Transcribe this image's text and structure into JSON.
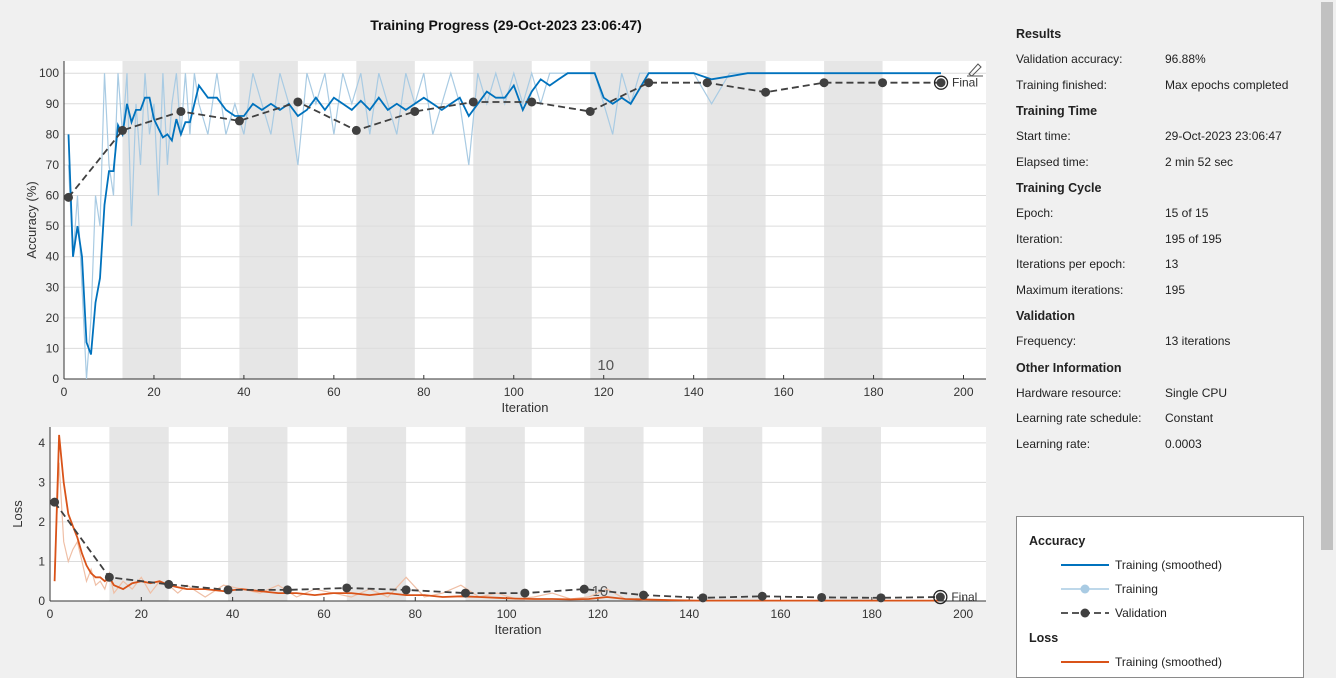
{
  "window": {
    "title": "Training Progress (29-Oct-2023 23:06:47)"
  },
  "icons": {
    "edit": "pencil-edit-icon"
  },
  "colors": {
    "smoothed": "#0072bd",
    "training": "#a9cbe3",
    "validation": "#404040",
    "loss_smoothed": "#d95319",
    "loss_training": "#efbfa6",
    "epoch_band": "#e6e6e6"
  },
  "results": {
    "heading": "Results",
    "validation_accuracy_label": "Validation accuracy:",
    "validation_accuracy": "96.88%",
    "training_finished_label": "Training finished:",
    "training_finished": "Max epochs completed"
  },
  "training_time": {
    "heading": "Training Time",
    "start_label": "Start time:",
    "start": "29-Oct-2023 23:06:47",
    "elapsed_label": "Elapsed time:",
    "elapsed": "2 min 52 sec"
  },
  "training_cycle": {
    "heading": "Training Cycle",
    "epoch_label": "Epoch:",
    "epoch": "15 of 15",
    "iteration_label": "Iteration:",
    "iteration": "195 of 195",
    "iter_per_epoch_label": "Iterations per epoch:",
    "iter_per_epoch": "13",
    "max_iter_label": "Maximum iterations:",
    "max_iter": "195"
  },
  "validation": {
    "heading": "Validation",
    "frequency_label": "Frequency:",
    "frequency": "13 iterations"
  },
  "other": {
    "heading": "Other Information",
    "hardware_label": "Hardware resource:",
    "hardware": "Single CPU",
    "lr_schedule_label": "Learning rate schedule:",
    "lr_schedule": "Constant",
    "lr_label": "Learning rate:",
    "lr": "0.0003"
  },
  "legend": {
    "accuracy_heading": "Accuracy",
    "smoothed": "Training (smoothed)",
    "training": "Training",
    "validation": "Validation",
    "loss_heading": "Loss",
    "loss_smoothed": "Training (smoothed)"
  },
  "chart_data": [
    {
      "type": "line",
      "ylabel": "Accuracy (%)",
      "xlabel": "Iteration",
      "xlim": [
        0,
        205
      ],
      "ylim": [
        0,
        104
      ],
      "xticks": [
        0,
        20,
        40,
        60,
        80,
        100,
        120,
        140,
        160,
        180,
        200
      ],
      "yticks": [
        0,
        10,
        20,
        30,
        40,
        50,
        60,
        70,
        80,
        90,
        100
      ],
      "epoch_count": 15,
      "iterations_per_epoch": 13,
      "annotation": "10",
      "final_label": "Final",
      "series": [
        {
          "name": "Training (smoothed)",
          "x": [
            1,
            2,
            3,
            4,
            5,
            6,
            7,
            8,
            9,
            10,
            11,
            12,
            13,
            14,
            15,
            16,
            17,
            18,
            19,
            20,
            21,
            22,
            23,
            24,
            25,
            26,
            27,
            28,
            29,
            30,
            32,
            34,
            36,
            38,
            40,
            42,
            44,
            46,
            48,
            50,
            52,
            54,
            56,
            58,
            60,
            62,
            64,
            66,
            68,
            70,
            72,
            74,
            76,
            78,
            80,
            82,
            84,
            86,
            88,
            90,
            92,
            94,
            96,
            98,
            100,
            102,
            104,
            106,
            108,
            110,
            112,
            114,
            116,
            118,
            120,
            122,
            124,
            126,
            128,
            130,
            132,
            134,
            136,
            140,
            144,
            148,
            152,
            156,
            160,
            170,
            180,
            195
          ],
          "y": [
            80,
            40,
            50,
            40,
            12,
            8,
            25,
            33,
            57,
            68,
            68,
            83,
            80,
            90,
            84,
            88,
            88,
            92,
            92,
            85,
            82,
            79,
            80,
            78,
            85,
            80,
            84,
            84,
            90,
            96,
            92,
            92,
            88,
            86,
            86,
            90,
            88,
            90,
            88,
            90,
            86,
            88,
            92,
            88,
            92,
            90,
            88,
            91,
            88,
            92,
            88,
            90,
            88,
            90,
            92,
            90,
            88,
            90,
            92,
            86,
            90,
            94,
            92,
            92,
            96,
            88,
            94,
            98,
            96,
            98,
            100,
            100,
            100,
            100,
            92,
            90,
            92,
            90,
            95,
            100,
            100,
            100,
            100,
            100,
            98,
            99,
            100,
            100,
            100,
            100,
            100,
            100
          ]
        },
        {
          "name": "Training",
          "x": [
            1,
            2,
            3,
            4,
            5,
            6,
            7,
            8,
            9,
            10,
            11,
            12,
            13,
            14,
            15,
            16,
            17,
            18,
            19,
            20,
            21,
            22,
            23,
            24,
            25,
            26,
            27,
            28,
            29,
            30,
            32,
            34,
            36,
            38,
            40,
            42,
            44,
            46,
            48,
            50,
            52,
            54,
            56,
            58,
            60,
            62,
            64,
            66,
            68,
            70,
            72,
            74,
            76,
            78,
            80,
            82,
            84,
            86,
            88,
            90,
            92,
            94,
            96,
            98,
            100,
            102,
            104,
            106,
            108,
            110,
            112,
            114,
            116,
            118,
            120,
            122,
            124,
            126,
            128,
            130,
            132,
            134,
            136,
            140,
            144,
            148,
            152,
            156,
            160,
            170,
            180,
            195
          ],
          "y": [
            70,
            40,
            60,
            30,
            0,
            20,
            60,
            50,
            100,
            70,
            60,
            100,
            80,
            100,
            50,
            90,
            70,
            100,
            80,
            90,
            60,
            100,
            70,
            90,
            100,
            80,
            100,
            80,
            100,
            90,
            80,
            100,
            80,
            90,
            80,
            100,
            90,
            80,
            100,
            90,
            70,
            100,
            90,
            100,
            80,
            100,
            90,
            100,
            80,
            100,
            90,
            80,
            100,
            90,
            100,
            80,
            90,
            100,
            90,
            70,
            100,
            90,
            100,
            90,
            100,
            90,
            100,
            90,
            100,
            100,
            100,
            100,
            100,
            100,
            90,
            80,
            100,
            90,
            100,
            100,
            100,
            100,
            100,
            100,
            90,
            100,
            100,
            100,
            100,
            100,
            100,
            100
          ]
        },
        {
          "name": "Validation",
          "x": [
            1,
            13,
            26,
            39,
            52,
            65,
            78,
            91,
            104,
            117,
            130,
            143,
            156,
            169,
            182,
            195
          ],
          "y": [
            59.4,
            81.3,
            87.5,
            84.4,
            90.6,
            81.3,
            87.5,
            90.6,
            90.6,
            87.5,
            96.9,
            96.9,
            93.8,
            96.9,
            96.9,
            96.9
          ]
        }
      ]
    },
    {
      "type": "line",
      "ylabel": "Loss",
      "xlabel": "Iteration",
      "xlim": [
        0,
        205
      ],
      "ylim": [
        0,
        4.4
      ],
      "xticks": [
        0,
        20,
        40,
        60,
        80,
        100,
        120,
        140,
        160,
        180,
        200
      ],
      "yticks": [
        0,
        1,
        2,
        3,
        4
      ],
      "epoch_count": 15,
      "iterations_per_epoch": 13,
      "annotation": "10",
      "final_label": "Final",
      "series": [
        {
          "name": "Training (smoothed)",
          "x": [
            1,
            2,
            3,
            4,
            5,
            6,
            7,
            8,
            9,
            10,
            11,
            12,
            13,
            14,
            16,
            18,
            20,
            22,
            24,
            26,
            28,
            30,
            34,
            38,
            42,
            46,
            50,
            54,
            58,
            62,
            66,
            70,
            74,
            78,
            82,
            86,
            90,
            94,
            98,
            102,
            106,
            110,
            114,
            118,
            122,
            126,
            130,
            136,
            142,
            150,
            160,
            170,
            180,
            195
          ],
          "y": [
            0.5,
            4.2,
            3.0,
            2.2,
            1.9,
            1.6,
            1.2,
            0.9,
            0.7,
            0.6,
            0.6,
            0.5,
            0.6,
            0.4,
            0.3,
            0.45,
            0.5,
            0.45,
            0.5,
            0.4,
            0.35,
            0.3,
            0.3,
            0.25,
            0.3,
            0.25,
            0.2,
            0.2,
            0.15,
            0.2,
            0.2,
            0.15,
            0.2,
            0.15,
            0.15,
            0.1,
            0.12,
            0.1,
            0.08,
            0.06,
            0.05,
            0.05,
            0.04,
            0.05,
            0.1,
            0.05,
            0.04,
            0.02,
            0.01,
            0.01,
            0.01,
            0.01,
            0.01,
            0.01
          ]
        },
        {
          "name": "Training",
          "x": [
            1,
            2,
            3,
            4,
            5,
            6,
            7,
            8,
            9,
            10,
            11,
            12,
            13,
            14,
            16,
            18,
            20,
            22,
            24,
            26,
            28,
            30,
            34,
            38,
            42,
            46,
            50,
            54,
            58,
            62,
            66,
            70,
            74,
            78,
            82,
            86,
            90,
            94,
            98,
            102,
            106,
            110,
            114,
            118,
            122,
            126,
            130,
            136,
            142,
            150,
            160,
            170,
            180,
            195
          ],
          "y": [
            0.8,
            3.5,
            1.5,
            1.0,
            1.3,
            1.5,
            1.0,
            0.5,
            0.8,
            0.4,
            0.5,
            0.3,
            0.7,
            0.2,
            0.5,
            0.3,
            0.6,
            0.2,
            0.5,
            0.4,
            0.2,
            0.4,
            0.1,
            0.4,
            0.3,
            0.2,
            0.4,
            0.1,
            0.3,
            0.2,
            0.1,
            0.3,
            0.1,
            0.6,
            0.1,
            0.2,
            0.4,
            0.1,
            0.2,
            0.05,
            0.1,
            0.2,
            0.05,
            0.1,
            0.3,
            0.05,
            0.02,
            0.02,
            0.01,
            0.01,
            0.01,
            0.01,
            0.01,
            0.01
          ]
        },
        {
          "name": "Validation",
          "x": [
            1,
            13,
            26,
            39,
            52,
            65,
            78,
            91,
            104,
            117,
            130,
            143,
            156,
            169,
            182,
            195
          ],
          "y": [
            2.5,
            0.6,
            0.42,
            0.28,
            0.28,
            0.33,
            0.28,
            0.2,
            0.2,
            0.3,
            0.15,
            0.08,
            0.12,
            0.09,
            0.08,
            0.1
          ]
        }
      ]
    }
  ]
}
